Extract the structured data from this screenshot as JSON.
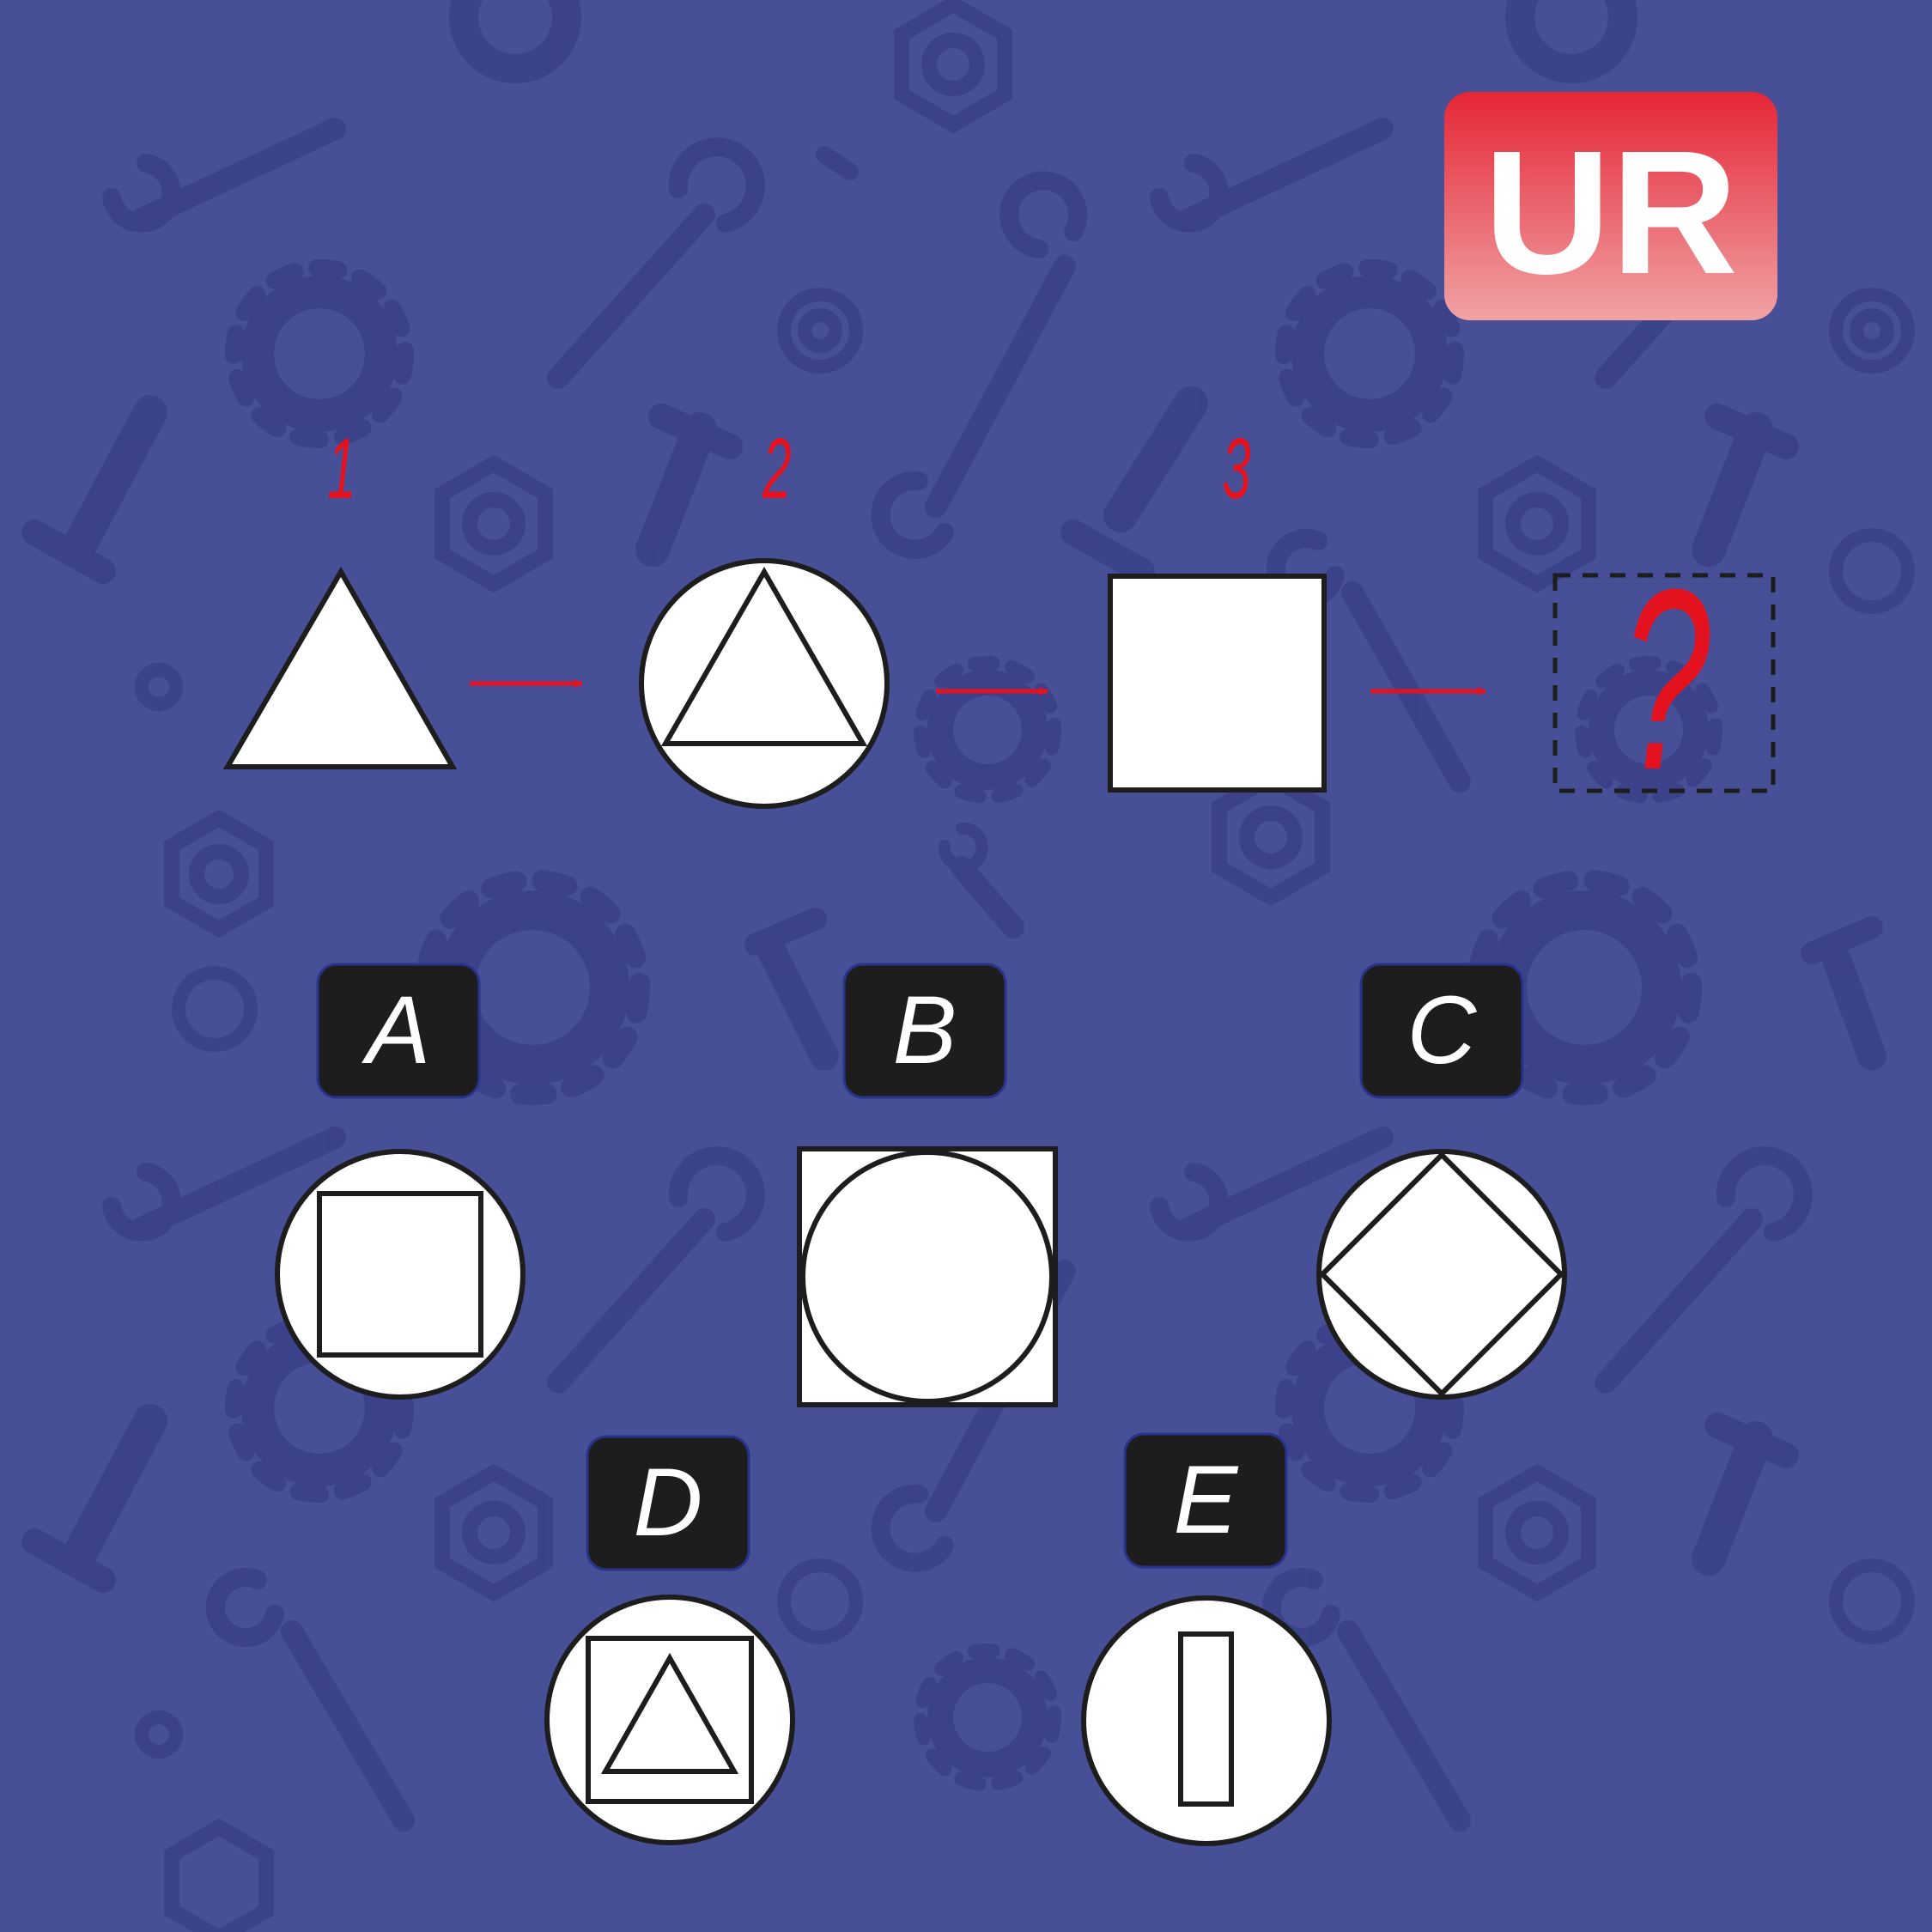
{
  "logo": {
    "text": "UR"
  },
  "sequence": {
    "steps": [
      {
        "number": "1",
        "shape": "triangle"
      },
      {
        "number": "2",
        "shape": "triangle-in-circle"
      },
      {
        "number": "3",
        "shape": "square"
      }
    ],
    "unknown": "?"
  },
  "options": [
    {
      "label": "A",
      "shape": "square-in-circle"
    },
    {
      "label": "B",
      "shape": "circle-in-square"
    },
    {
      "label": "C",
      "shape": "diamond-in-circle"
    },
    {
      "label": "D",
      "shape": "triangle-in-square-in-circle"
    },
    {
      "label": "E",
      "shape": "rectangle-in-circle"
    }
  ],
  "colors": {
    "background": "#474f96",
    "pattern": "#3a4189",
    "accent_red": "#e3121e",
    "label_box": "#1d1d1d",
    "shape_fill": "#ffffff",
    "stroke": "#1d1d1d"
  }
}
